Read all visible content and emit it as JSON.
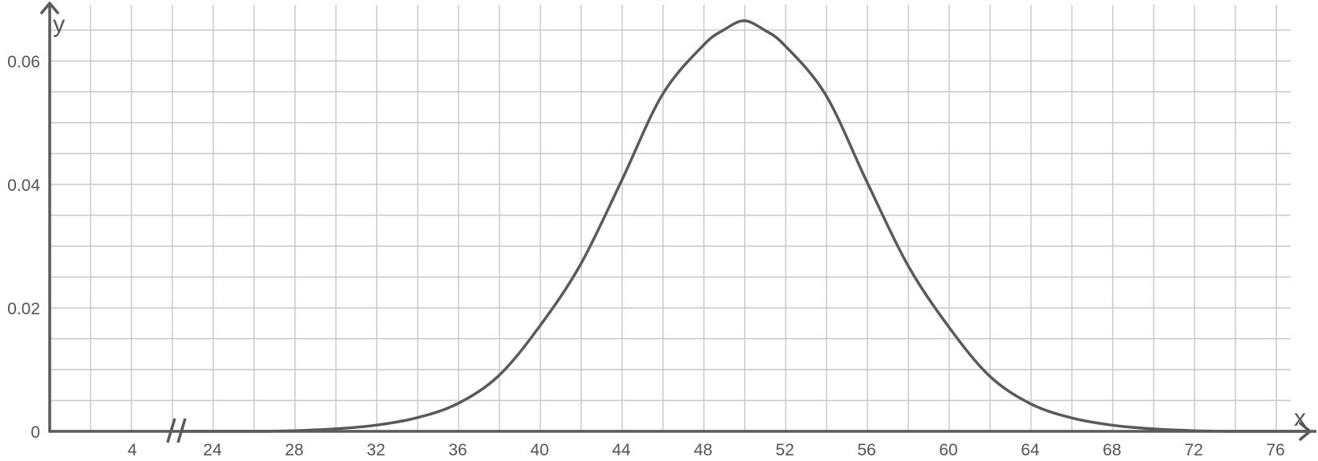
{
  "chart_data": {
    "type": "line",
    "title": "",
    "xlabel": "x",
    "ylabel": "y",
    "x_ticks": [
      "4",
      "24",
      "28",
      "32",
      "36",
      "40",
      "44",
      "48",
      "52",
      "56",
      "60",
      "64",
      "68",
      "72",
      "76"
    ],
    "y_ticks": [
      "0",
      "0.02",
      "0.04",
      "0.06"
    ],
    "x_axis_break": "between 4 and 24",
    "x_range_after_break": [
      20,
      78
    ],
    "ylim": [
      0,
      0.068
    ],
    "grid": true,
    "legend": "none",
    "series": [
      {
        "x": [
          22,
          26,
          28,
          30,
          32,
          34,
          36,
          38,
          40,
          42,
          44,
          46,
          48,
          49,
          50,
          51,
          52,
          54,
          56,
          58,
          60,
          62,
          64,
          66,
          68,
          70,
          72,
          74,
          78
        ],
        "y": [
          0,
          0,
          0.0001,
          0.0004,
          0.001,
          0.0022,
          0.0045,
          0.009,
          0.017,
          0.027,
          0.0405,
          0.0545,
          0.0625,
          0.065,
          0.0665,
          0.065,
          0.0625,
          0.0545,
          0.0405,
          0.027,
          0.017,
          0.009,
          0.0045,
          0.0022,
          0.001,
          0.0004,
          0.0001,
          0,
          0
        ]
      }
    ],
    "colors": {
      "curve": "#5a5a5a",
      "axis": "#5a5a5a",
      "grid": "#c8c8c8"
    }
  }
}
